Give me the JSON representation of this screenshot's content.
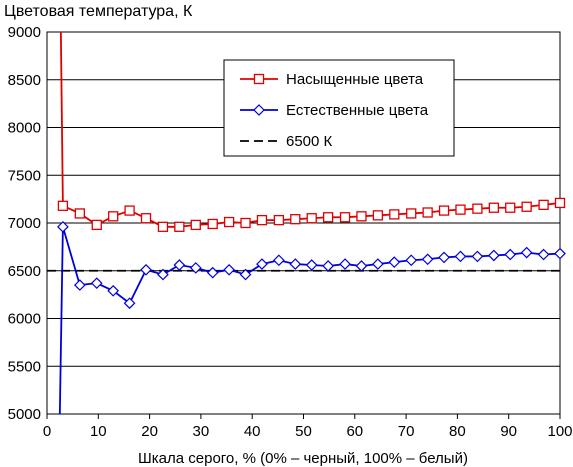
{
  "chart_data": {
    "type": "line",
    "title": "Цветовая температура, К",
    "xlabel": "Шкала серого, % (0% – черный, 100% – белый)",
    "ylabel": "",
    "xlim": [
      0,
      100
    ],
    "ylim": [
      5000,
      9000
    ],
    "x_ticks": [
      "0",
      "10",
      "20",
      "30",
      "40",
      "50",
      "60",
      "70",
      "80",
      "90",
      "100"
    ],
    "y_ticks": [
      "5000",
      "5500",
      "6000",
      "6500",
      "7000",
      "7500",
      "8000",
      "8500",
      "9000"
    ],
    "grid": "horizontal",
    "legend_position": "top-right",
    "series": [
      {
        "name": "Насыщенные цвета",
        "color": "#e00000",
        "marker": "square",
        "dash": "solid",
        "x": [
          2.7,
          3.1,
          6.4,
          9.7,
          12.9,
          16.1,
          19.3,
          22.6,
          25.8,
          29.0,
          32.3,
          35.5,
          38.7,
          41.9,
          45.2,
          48.4,
          51.6,
          54.8,
          58.1,
          61.3,
          64.5,
          67.7,
          71.0,
          74.2,
          77.4,
          80.6,
          83.9,
          87.1,
          90.3,
          93.5,
          96.8,
          100
        ],
        "y": [
          9000,
          7180,
          7100,
          6980,
          7070,
          7130,
          7050,
          6960,
          6960,
          6980,
          6990,
          7010,
          7000,
          7030,
          7030,
          7040,
          7050,
          7060,
          7060,
          7070,
          7080,
          7090,
          7100,
          7110,
          7130,
          7140,
          7150,
          7160,
          7160,
          7170,
          7190,
          7210
        ],
        "marker_from": 1
      },
      {
        "name": "Естественные цвета",
        "color": "#0000dd",
        "marker": "diamond",
        "dash": "solid",
        "x": [
          2.5,
          3.1,
          6.4,
          9.7,
          12.9,
          16.1,
          19.3,
          22.6,
          25.8,
          29.0,
          32.3,
          35.5,
          38.7,
          41.9,
          45.2,
          48.4,
          51.6,
          54.8,
          58.1,
          61.3,
          64.5,
          67.7,
          71.0,
          74.2,
          77.4,
          80.6,
          83.9,
          87.1,
          90.3,
          93.5,
          96.8,
          100
        ],
        "y": [
          5000,
          6960,
          6350,
          6370,
          6290,
          6160,
          6510,
          6460,
          6560,
          6530,
          6480,
          6510,
          6460,
          6570,
          6610,
          6570,
          6560,
          6550,
          6570,
          6550,
          6570,
          6590,
          6610,
          6620,
          6640,
          6650,
          6650,
          6660,
          6670,
          6690,
          6670,
          6680
        ],
        "marker_from": 1
      },
      {
        "name": "6500 К",
        "color": "#000000",
        "marker": "none",
        "dash": "dashed",
        "x": [
          0,
          100
        ],
        "y": [
          6500,
          6500
        ],
        "marker_from": 0
      }
    ]
  }
}
